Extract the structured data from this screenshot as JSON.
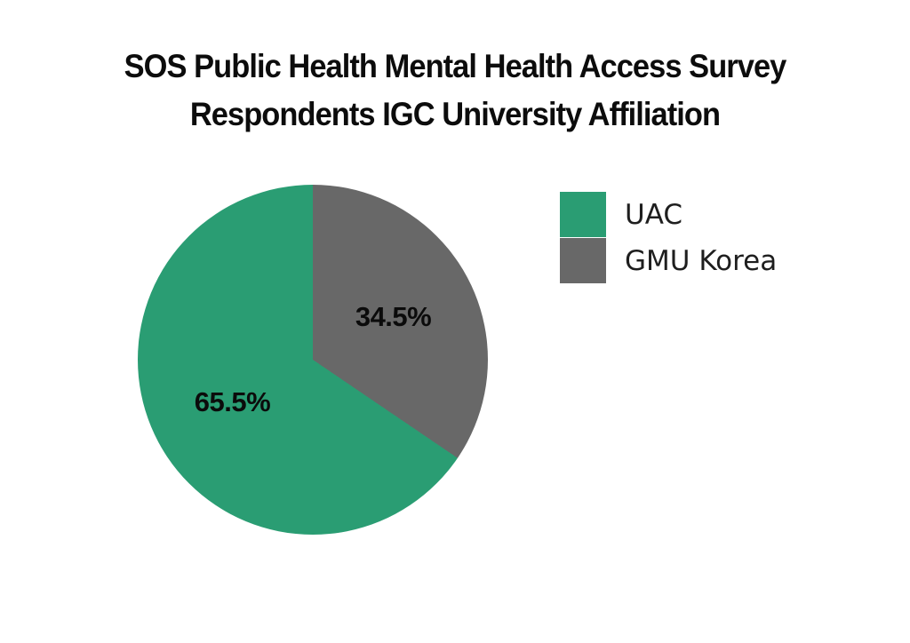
{
  "title": {
    "line1": "SOS Public Health Mental Health Access Survey",
    "line2": "Respondents IGC University Affiliation"
  },
  "chart_data": {
    "type": "pie",
    "title": "SOS Public Health Mental Health Access Survey Respondents IGC University Affiliation",
    "start_angle_deg": 0,
    "direction": "clockwise",
    "slices": [
      {
        "label": "GMU Korea",
        "value": 34.5,
        "display": "34.5%",
        "color": "#686868"
      },
      {
        "label": "UAC",
        "value": 65.5,
        "display": "65.5%",
        "color": "#2a9d73"
      }
    ],
    "legend": {
      "position": "right",
      "items": [
        {
          "label": "UAC",
          "color": "#2a9d73"
        },
        {
          "label": "GMU Korea",
          "color": "#686868"
        }
      ]
    },
    "colors": {
      "uac_green": "#2a9d73",
      "gmu_gray": "#686868",
      "text_black": "#0c0c0c",
      "background": "#ffffff"
    }
  }
}
